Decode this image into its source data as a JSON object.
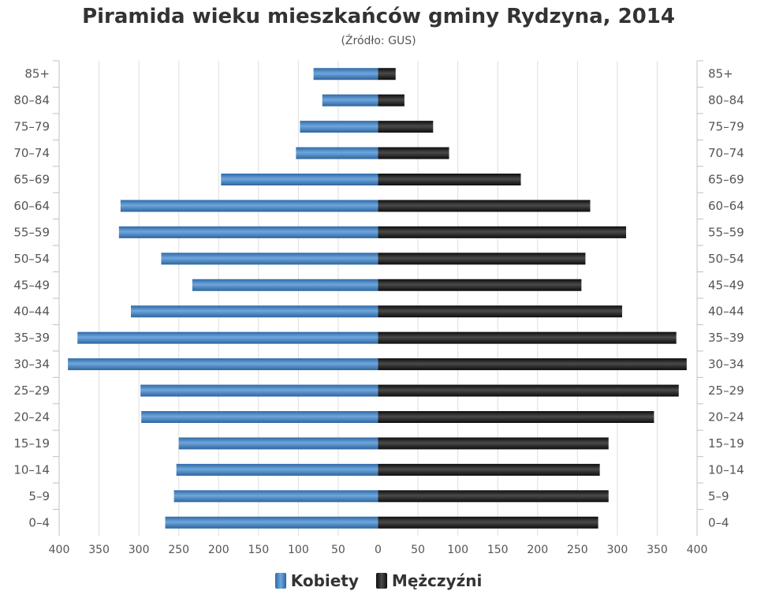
{
  "chart_data": {
    "type": "bar",
    "title": "Piramida wieku mieszkańców gminy Rydzyna, 2014",
    "subtitle": "(Źródło: GUS)",
    "categories": [
      "85+",
      "80-84",
      "75-79",
      "70-74",
      "65-69",
      "60-64",
      "55-59",
      "50-54",
      "45-49",
      "40-44",
      "35-39",
      "30-34",
      "25-29",
      "20-24",
      "15-19",
      "10-14",
      "5-9",
      "0-4"
    ],
    "series": [
      {
        "name": "Kobiety",
        "color": "#3a7ec2",
        "values": [
          81,
          70,
          98,
          103,
          197,
          323,
          325,
          272,
          233,
          310,
          377,
          389,
          298,
          297,
          250,
          253,
          256,
          267
        ]
      },
      {
        "name": "Mężczyźni",
        "color": "#1a1a1a",
        "values": [
          22,
          33,
          69,
          89,
          179,
          266,
          311,
          260,
          255,
          306,
          374,
          387,
          377,
          346,
          289,
          278,
          289,
          276
        ]
      }
    ],
    "x_ticks": [
      "400",
      "350",
      "300",
      "250",
      "200",
      "150",
      "100",
      "50",
      "0",
      "50",
      "100",
      "150",
      "200",
      "250",
      "300",
      "350",
      "400"
    ],
    "xlim": [
      -400,
      400
    ],
    "grid": true,
    "legend_position": "bottom"
  }
}
